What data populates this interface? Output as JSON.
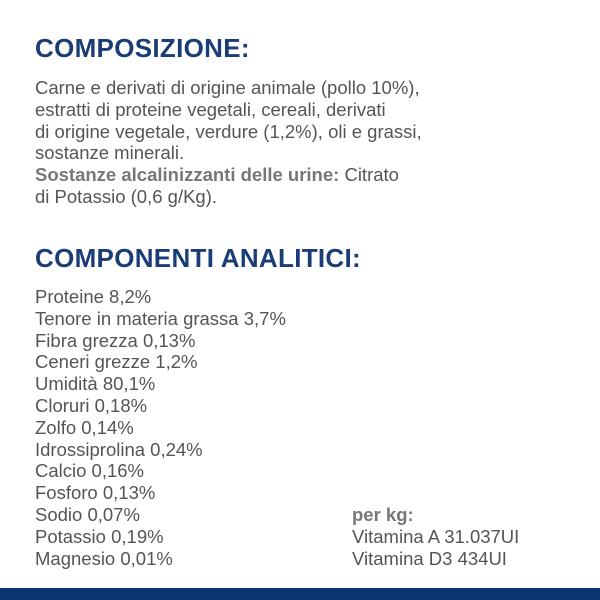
{
  "composition": {
    "title": "COMPOSIZIONE:",
    "lines": [
      "Carne e derivati di origine animale (pollo 10%),",
      "estratti di proteine vegetali, cereali, derivati",
      "di origine vegetale, verdure (1,2%), oli e grassi,",
      "sostanze minerali."
    ],
    "additive_label": "Sostanze alcalinizzanti delle urine:",
    "additive_text_1": " Citrato",
    "additive_text_2": "di Potassio (0,6 g/Kg)."
  },
  "analytical": {
    "title": "COMPONENTI ANALITICI:",
    "items": [
      "Proteine 8,2%",
      "Tenore in materia grassa 3,7%",
      "Fibra grezza 0,13%",
      "Ceneri grezze 1,2%",
      "Umidità 80,1%",
      "Cloruri 0,18%",
      "Zolfo 0,14%",
      "Idrossiprolina 0,24%",
      "Calcio 0,16%",
      "Fosforo 0,13%",
      "Sodio 0,07%",
      "Potassio 0,19%",
      "Magnesio 0,01%"
    ],
    "per_kg_label": "per kg:",
    "per_kg_items": [
      "Vitamina A 31.037UI",
      "Vitamina D3 434UI"
    ]
  },
  "colors": {
    "heading": "#1a3d78",
    "text": "#555555",
    "bottom_bar": "#0a3572"
  }
}
